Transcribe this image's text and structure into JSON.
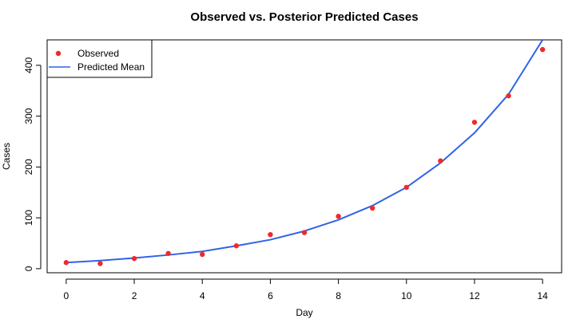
{
  "chart_data": {
    "type": "scatter",
    "title": "Observed vs. Posterior Predicted Cases",
    "xlabel": "Day",
    "ylabel": "Cases",
    "xlim": [
      -0.56,
      14.56
    ],
    "ylim": [
      -8,
      450
    ],
    "x_ticks": [
      0,
      2,
      4,
      6,
      8,
      10,
      12,
      14
    ],
    "y_ticks": [
      0,
      100,
      200,
      300,
      400
    ],
    "legend": {
      "position": "top-left",
      "entries": [
        "Observed",
        "Predicted Mean"
      ]
    },
    "grid": false,
    "series": [
      {
        "name": "Observed",
        "kind": "points",
        "color": "#ef2a2a",
        "x": [
          0,
          1,
          2,
          3,
          4,
          5,
          6,
          7,
          8,
          9,
          10,
          11,
          12,
          13,
          14
        ],
        "y": [
          12,
          10,
          20,
          30,
          28,
          45,
          67,
          71,
          103,
          119,
          160,
          212,
          288,
          340,
          431
        ]
      },
      {
        "name": "Predicted Mean",
        "kind": "line",
        "color": "#2f63e8",
        "x": [
          0,
          1,
          2,
          3,
          4,
          5,
          6,
          7,
          8,
          9,
          10,
          11,
          12,
          13,
          14
        ],
        "y": [
          12,
          16,
          21,
          27,
          34,
          45,
          57,
          74,
          96,
          124,
          160,
          208,
          267,
          343,
          450
        ]
      }
    ]
  }
}
